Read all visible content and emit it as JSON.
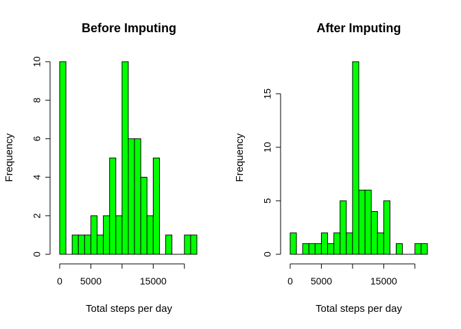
{
  "colors": {
    "bar_fill": "#00ff00",
    "bar_stroke": "#000000",
    "background": "#ffffff"
  },
  "chart_data": [
    {
      "type": "bar",
      "title": "Before Imputing",
      "xlabel": "Total steps per day",
      "ylabel": "Frequency",
      "bin_width": 1000,
      "x_start": 0,
      "values": [
        10,
        0,
        1,
        1,
        1,
        2,
        1,
        2,
        5,
        2,
        10,
        6,
        6,
        4,
        2,
        5,
        0,
        1,
        0,
        0,
        1,
        1
      ],
      "xlim": [
        0,
        22000
      ],
      "ylim": [
        0,
        10
      ],
      "xticks": [
        0,
        5000,
        10000,
        15000,
        20000
      ],
      "xtick_labels": [
        "0",
        "5000",
        "",
        "15000",
        ""
      ],
      "yticks": [
        0,
        2,
        4,
        6,
        8,
        10
      ],
      "ytick_labels": [
        "0",
        "2",
        "4",
        "6",
        "8",
        "10"
      ],
      "grid": false,
      "legend": "none"
    },
    {
      "type": "bar",
      "title": "After Imputing",
      "xlabel": "Total steps per day",
      "ylabel": "Frequency",
      "bin_width": 1000,
      "x_start": 0,
      "values": [
        2,
        0,
        1,
        1,
        1,
        2,
        1,
        2,
        5,
        2,
        18,
        6,
        6,
        4,
        2,
        5,
        0,
        1,
        0,
        0,
        1,
        1
      ],
      "xlim": [
        0,
        22000
      ],
      "ylim": [
        0,
        18
      ],
      "xticks": [
        0,
        5000,
        10000,
        15000,
        20000
      ],
      "xtick_labels": [
        "0",
        "5000",
        "",
        "15000",
        ""
      ],
      "yticks": [
        0,
        5,
        10,
        15
      ],
      "ytick_labels": [
        "0",
        "5",
        "10",
        "15"
      ],
      "grid": false,
      "legend": "none"
    }
  ]
}
